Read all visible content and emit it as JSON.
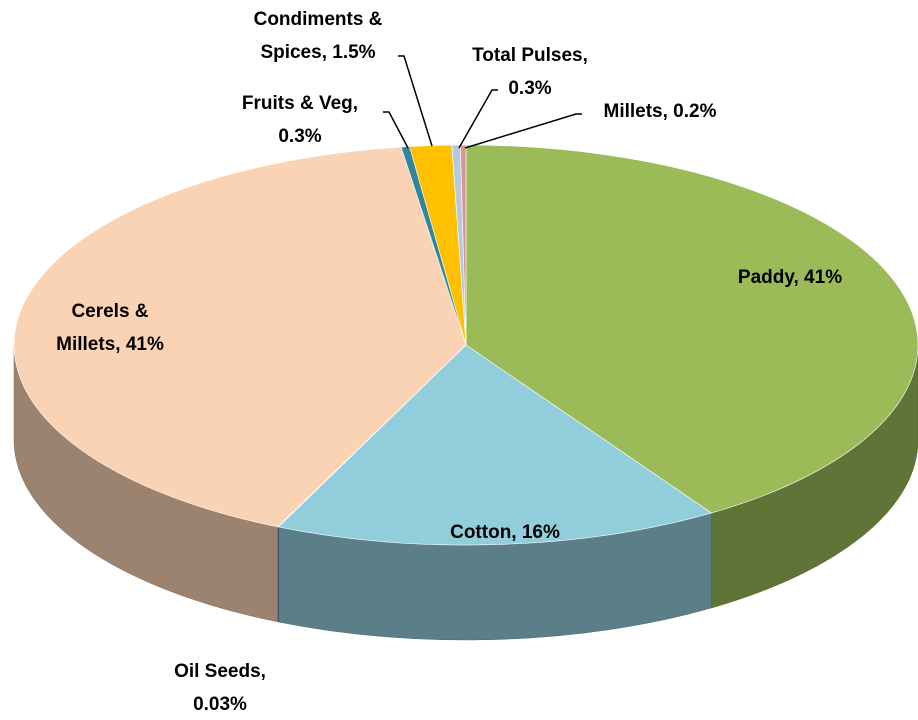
{
  "chart_data": {
    "type": "pie3d",
    "values": [
      41,
      16,
      0.03,
      41,
      0.3,
      1.5,
      0.3,
      0.2
    ],
    "value_labels": [
      [
        "Paddy, 41%"
      ],
      [
        "Cotton, 16%"
      ],
      [
        "Oil Seeds,",
        "0.03%"
      ],
      [
        "Cerels &",
        "Millets, 41%"
      ],
      [
        "Fruits & Veg,",
        "0.3%"
      ],
      [
        "Condiments &",
        "Spices, 1.5%"
      ],
      [
        "Total Pulses,",
        "0.3%"
      ],
      [
        "Millets, 0.2%"
      ]
    ],
    "colors": [
      "#9bbb59",
      "#92cddc",
      "#4f81bd",
      "#fad3b4",
      "#31859c",
      "#ffc000",
      "#b7c9e2",
      "#d99694"
    ]
  }
}
